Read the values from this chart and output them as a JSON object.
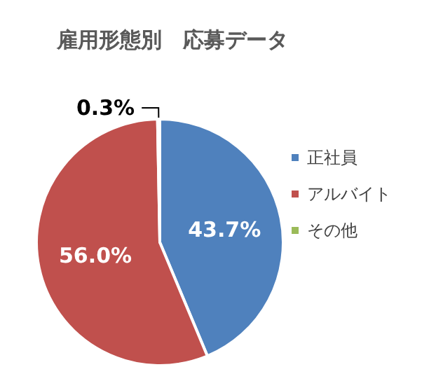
{
  "chart_data": {
    "type": "pie",
    "title": "雇用形態別　応募データ",
    "categories": [
      "正社員",
      "アルバイト",
      "その他"
    ],
    "values": [
      43.7,
      56.0,
      0.3
    ],
    "colors": [
      "#4f81bd",
      "#c0504d",
      "#9bbb59"
    ],
    "value_labels": [
      "43.7%",
      "56.0%",
      "0.3%"
    ],
    "legend": "right"
  }
}
